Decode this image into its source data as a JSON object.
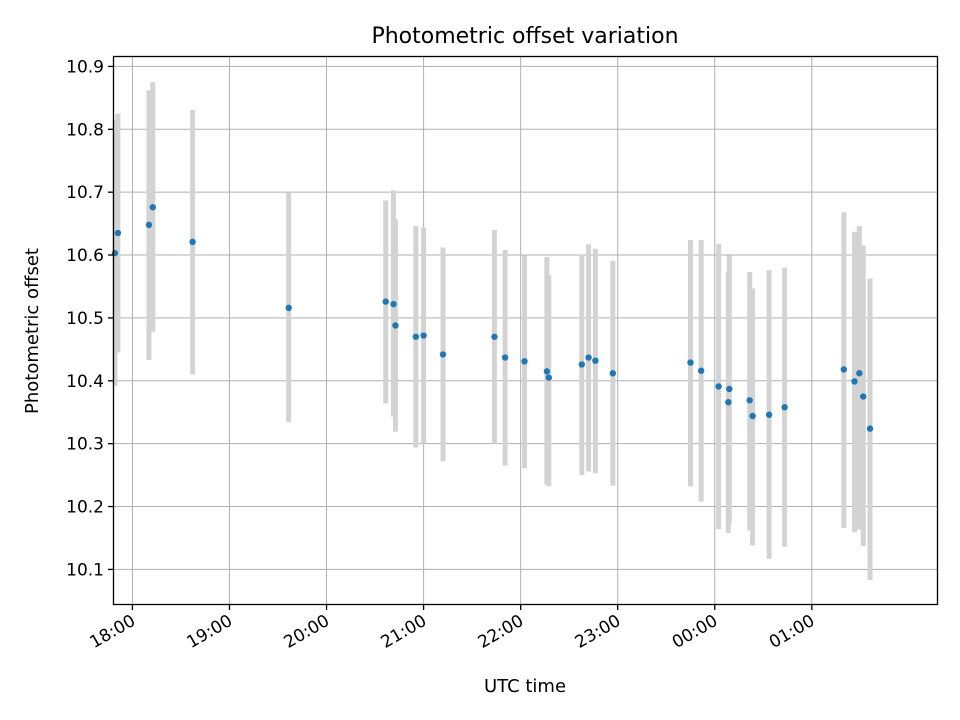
{
  "chart_data": {
    "type": "scatter",
    "title": "Photometric offset variation",
    "xlabel": "UTC time",
    "ylabel": "Photometric offset",
    "x_tick_labels": [
      "18:00",
      "19:00",
      "20:00",
      "21:00",
      "22:00",
      "23:00",
      "00:00",
      "01:00"
    ],
    "x_ticks_hours": [
      0,
      1,
      2,
      3,
      4,
      5,
      6,
      7
    ],
    "x_origin": "18:00",
    "y_ticks": [
      10.1,
      10.2,
      10.3,
      10.4,
      10.5,
      10.6,
      10.7,
      10.8,
      10.9
    ],
    "y_tick_labels": [
      "10.1",
      "10.2",
      "10.3",
      "10.4",
      "10.5",
      "10.6",
      "10.7",
      "10.8",
      "10.9"
    ],
    "xlim_hours": [
      -0.19,
      8.29
    ],
    "ylim": [
      10.045,
      10.915
    ],
    "grid": true,
    "marker_color": "#1f77b4",
    "errorbar_color": "#d3d3d3",
    "series": [
      {
        "x_hours": [
          -0.18,
          -0.15,
          0.17,
          0.21,
          0.62,
          1.61,
          2.61,
          2.69,
          2.71,
          2.92,
          3.0,
          3.2,
          3.73,
          3.84,
          4.04,
          4.27,
          4.29,
          4.63,
          4.7,
          4.77,
          4.95,
          5.75,
          5.86,
          6.04,
          6.14,
          6.15,
          6.36,
          6.39,
          6.56,
          6.72,
          7.33,
          7.44,
          7.49,
          7.53,
          7.6
        ],
        "y": [
          10.603,
          10.635,
          10.648,
          10.676,
          10.621,
          10.516,
          10.526,
          10.522,
          10.488,
          10.47,
          10.472,
          10.442,
          10.47,
          10.437,
          10.431,
          10.415,
          10.405,
          10.426,
          10.437,
          10.432,
          10.412,
          10.429,
          10.416,
          10.391,
          10.366,
          10.387,
          10.369,
          10.344,
          10.346,
          10.358,
          10.418,
          10.399,
          10.412,
          10.375,
          10.324
        ],
        "y_low": [
          10.392,
          10.445,
          10.433,
          10.478,
          10.41,
          10.334,
          10.364,
          10.343,
          10.319,
          10.294,
          10.3,
          10.272,
          10.3,
          10.265,
          10.261,
          10.235,
          10.232,
          10.25,
          10.256,
          10.253,
          10.233,
          10.232,
          10.208,
          10.164,
          10.158,
          10.172,
          10.162,
          10.138,
          10.117,
          10.136,
          10.166,
          10.159,
          10.163,
          10.137,
          10.083
        ],
        "y_high": [
          10.814,
          10.825,
          10.862,
          10.875,
          10.831,
          10.699,
          10.687,
          10.703,
          10.657,
          10.646,
          10.644,
          10.612,
          10.64,
          10.608,
          10.599,
          10.597,
          10.568,
          10.601,
          10.617,
          10.61,
          10.591,
          10.624,
          10.624,
          10.618,
          10.573,
          10.599,
          10.573,
          10.547,
          10.576,
          10.58,
          10.668,
          10.637,
          10.646,
          10.615,
          10.563
        ]
      }
    ]
  }
}
